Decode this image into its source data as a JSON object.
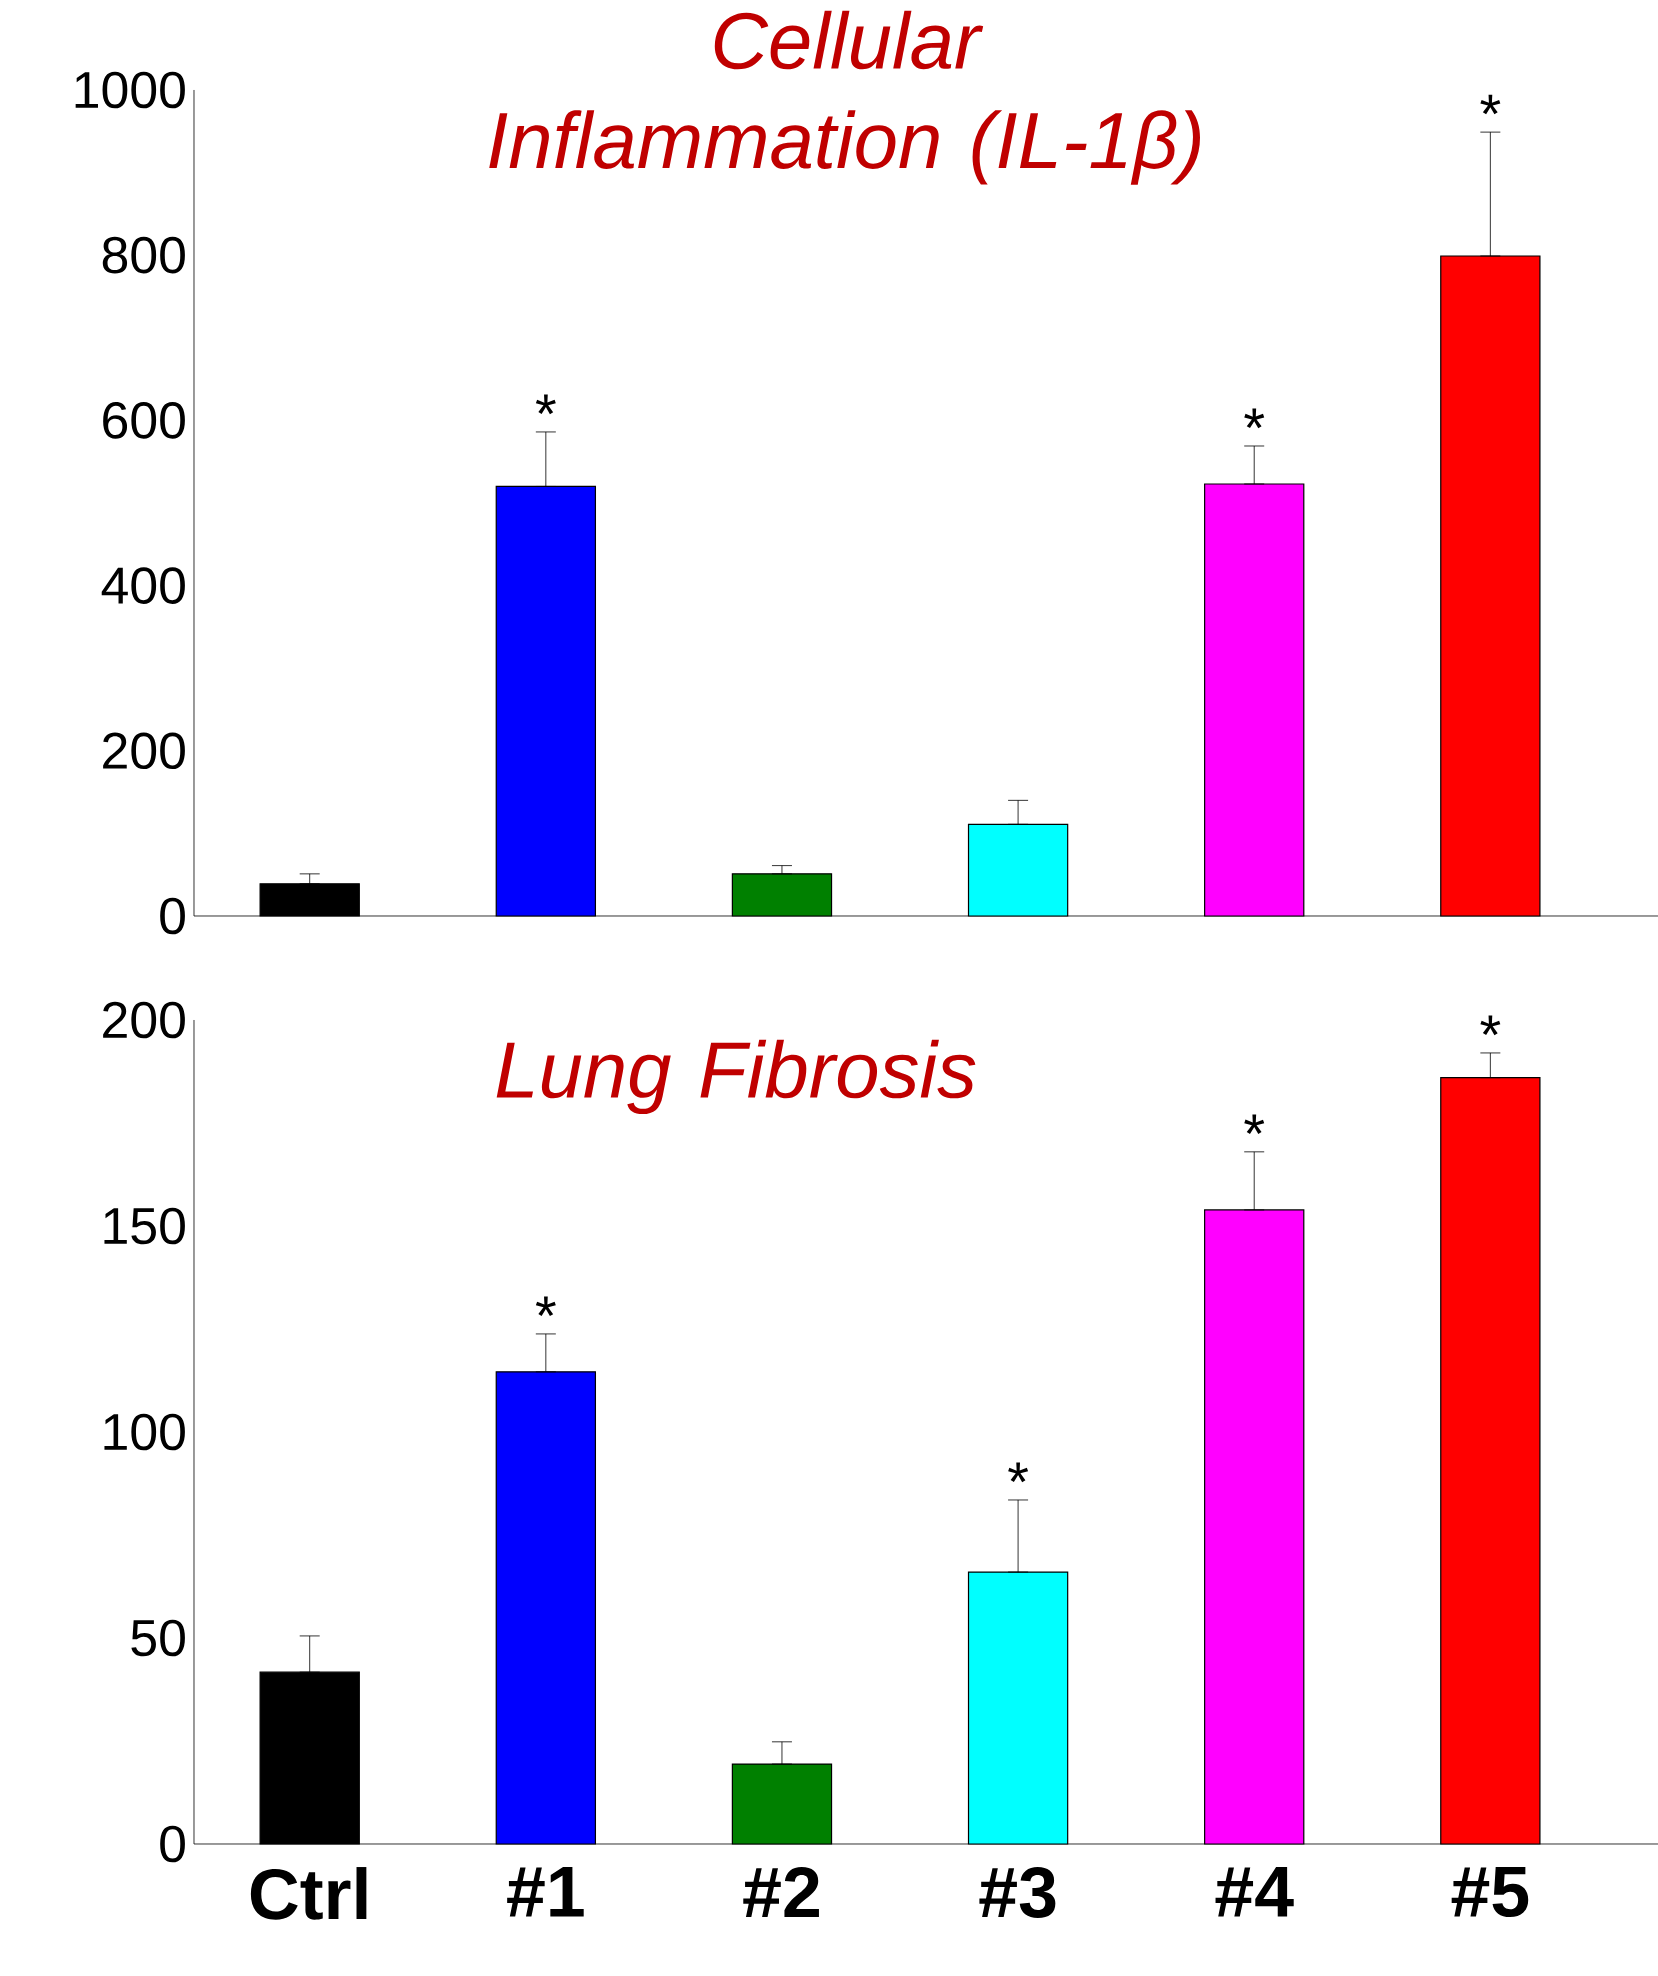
{
  "chart_data": [
    {
      "type": "bar",
      "title": "Cellular Inflammation (IL-1β)",
      "categories": [
        "Ctrl",
        "#1",
        "#2",
        "#3",
        "#4",
        "#5"
      ],
      "values": [
        39,
        520,
        51,
        111,
        523,
        799
      ],
      "colors": [
        "#000000",
        "#0000ff",
        "#008000",
        "#00ffff",
        "#ff00ff",
        "#ff0000"
      ],
      "errors": [
        [
          39,
          51
        ],
        [
          520,
          586
        ],
        [
          51,
          61
        ],
        [
          111,
          140
        ],
        [
          523,
          569
        ],
        [
          799,
          949
        ]
      ],
      "ylim": [
        0,
        1000
      ],
      "yticks": [
        0,
        200,
        400,
        600,
        800,
        1000
      ],
      "tick_labels": "y",
      "annotations": [
        {
          "text": "*",
          "x": "#1",
          "y": 586
        },
        {
          "text": "*",
          "x": "#4",
          "y": 569
        },
        {
          "text": "*",
          "x": "#5",
          "y": 949
        }
      ]
    },
    {
      "type": "bar",
      "title": "Lung Fibrosis",
      "categories": [
        "Ctrl",
        "#1",
        "#2",
        "#3",
        "#4",
        "#5"
      ],
      "values": [
        41.7,
        114.6,
        19.4,
        66,
        153.9,
        186
      ],
      "colors": [
        "#000000",
        "#0000ff",
        "#008000",
        "#00ffff",
        "#ff00ff",
        "#ff0000"
      ],
      "errors": [
        [
          41.7,
          50.5
        ],
        [
          114.6,
          123.8
        ],
        [
          19.4,
          24.8
        ],
        [
          66,
          83.5
        ],
        [
          153.9,
          168
        ],
        [
          186,
          192
        ]
      ],
      "ylim": [
        0,
        200
      ],
      "yticks": [
        0,
        50,
        100,
        150,
        200
      ],
      "annotations": [
        {
          "text": "*",
          "x": "#1",
          "y": 123.8
        },
        {
          "text": "*",
          "x": "#3",
          "y": 83.5
        },
        {
          "text": "*",
          "x": "#4",
          "y": 168
        },
        {
          "text": "*",
          "x": "#5",
          "y": 192
        }
      ]
    }
  ]
}
